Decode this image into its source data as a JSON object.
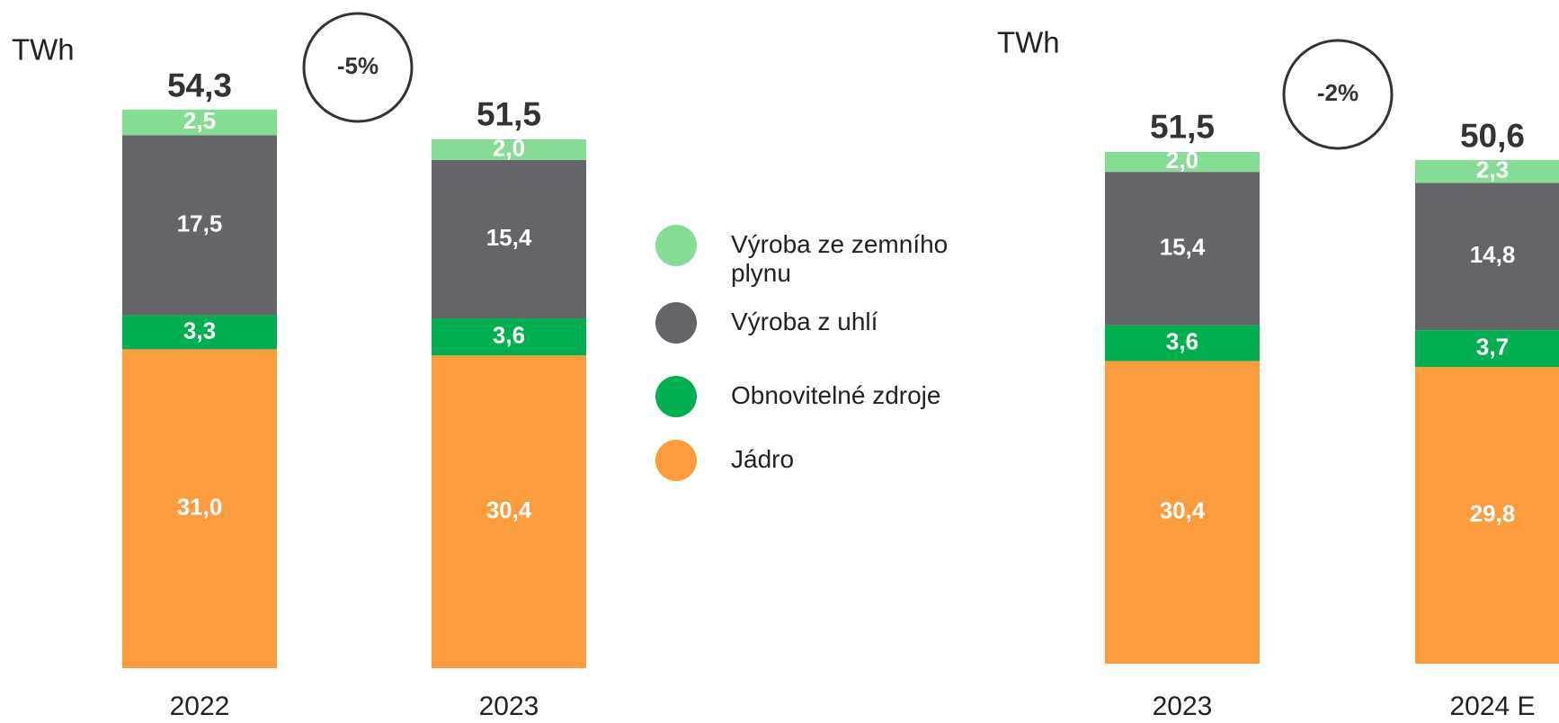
{
  "charts": [
    {
      "chart_data": {
        "type": "stacked_bar",
        "unit_label": "TWh",
        "annotation": "-5%",
        "categories": [
          "2022",
          "2023"
        ],
        "totals": [
          54.3,
          51.5
        ],
        "total_labels": [
          "54,3",
          "51,5"
        ],
        "series": [
          {
            "name": "Jádro",
            "color": "#fd9b3f",
            "values": [
              31.0,
              30.4
            ],
            "value_labels": [
              "31,0",
              "30,4"
            ]
          },
          {
            "name": "Obnovitelné zdroje",
            "color": "#00b050",
            "values": [
              3.3,
              3.6
            ],
            "value_labels": [
              "3,3",
              "3,6"
            ]
          },
          {
            "name": "Výroba z uhlí",
            "color": "#636569",
            "values": [
              17.5,
              15.4
            ],
            "value_labels": [
              "17,5",
              "15,4"
            ]
          },
          {
            "name": "Výroba ze zemního plynu",
            "color": "#85dc95",
            "values": [
              2.5,
              2.0
            ],
            "value_labels": [
              "2,5",
              "2,0"
            ]
          }
        ]
      }
    },
    {
      "chart_data": {
        "type": "stacked_bar",
        "unit_label": "TWh",
        "annotation": "-2%",
        "categories": [
          "2023",
          "2024 E"
        ],
        "totals": [
          51.5,
          50.6
        ],
        "total_labels": [
          "51,5",
          "50,6"
        ],
        "series": [
          {
            "color": "#fd9b3f",
            "values": [
              30.4,
              29.8
            ],
            "value_labels": [
              "30,4",
              "29,8"
            ]
          },
          {
            "color": "#00b050",
            "values": [
              3.6,
              3.7
            ],
            "value_labels": [
              "3,6",
              "3,7"
            ]
          },
          {
            "color": "#636569",
            "values": [
              15.4,
              14.8
            ],
            "value_labels": [
              "15,4",
              "14,8"
            ]
          },
          {
            "color": "#85dc95",
            "values": [
              2.0,
              2.3
            ],
            "value_labels": [
              "2,0",
              "2,3"
            ]
          }
        ]
      }
    }
  ]
}
